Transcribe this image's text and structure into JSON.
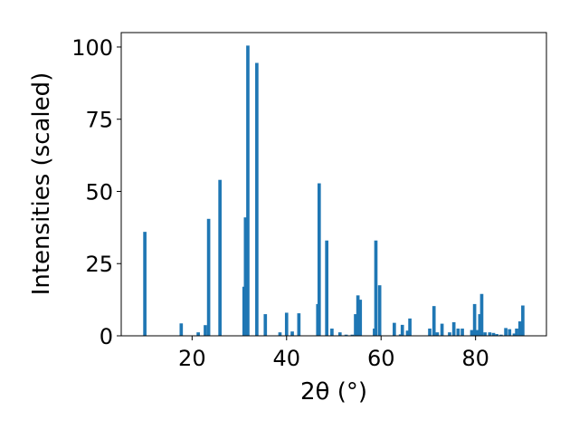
{
  "chart_data": {
    "type": "bar",
    "xlabel": "2θ (°)",
    "ylabel": "Intensities (scaled)",
    "xlim": [
      5,
      95
    ],
    "ylim": [
      0,
      105
    ],
    "xticks": [
      20,
      40,
      60,
      80
    ],
    "yticks": [
      0,
      25,
      50,
      75,
      100
    ],
    "grid": false,
    "bar_color": "#1f77b4",
    "bar_width": 0.7,
    "series": [
      {
        "x": [
          10.0,
          17.7,
          21.3,
          22.8,
          23.5,
          25.9,
          31.0,
          31.3,
          31.8,
          33.7,
          35.5,
          38.6,
          40.0,
          41.2,
          42.6,
          46.6,
          46.9,
          48.5,
          49.6,
          51.3,
          52.6,
          53.9,
          54.6,
          55.1,
          55.6,
          58.6,
          58.9,
          59.7,
          62.8,
          64.1,
          64.5,
          65.6,
          66.1,
          70.3,
          71.2,
          71.9,
          72.9,
          74.5,
          75.4,
          76.3,
          77.2,
          79.2,
          79.8,
          80.4,
          80.9,
          81.3,
          82.0,
          83.0,
          83.8,
          84.5,
          85.4,
          86.4,
          87.2,
          88.2,
          88.7,
          89.4,
          90.0
        ],
        "values": [
          36,
          4.3,
          1.2,
          3.7,
          40.5,
          54,
          17,
          41,
          100.5,
          94.5,
          7.5,
          1.2,
          8,
          1.5,
          7.8,
          11,
          52.8,
          33,
          2.5,
          1.2,
          0.4,
          0.4,
          7.5,
          14,
          12.5,
          2.5,
          33,
          17.5,
          4.5,
          0.5,
          3.8,
          1.8,
          6,
          2.5,
          10.3,
          1.2,
          4.2,
          1.2,
          4.7,
          2.5,
          2.5,
          2.0,
          11,
          2.0,
          7.5,
          14.5,
          1.2,
          1.2,
          1.0,
          0.6,
          0.4,
          2.7,
          2.3,
          0.8,
          2.5,
          5.0,
          10.5
        ]
      }
    ]
  }
}
